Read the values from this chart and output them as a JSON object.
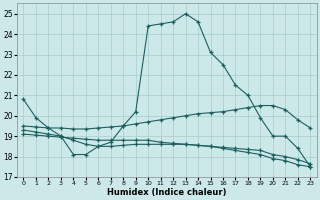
{
  "xlabel": "Humidex (Indice chaleur)",
  "background_color": "#cce8e8",
  "grid_color": "#aacccc",
  "line_color": "#1a6060",
  "xlim": [
    -0.5,
    23.5
  ],
  "ylim": [
    17,
    25.5
  ],
  "yticks": [
    17,
    18,
    19,
    20,
    21,
    22,
    23,
    24,
    25
  ],
  "xticks": [
    0,
    1,
    2,
    3,
    4,
    5,
    6,
    7,
    8,
    9,
    10,
    11,
    12,
    13,
    14,
    15,
    16,
    17,
    18,
    19,
    20,
    21,
    22,
    23
  ],
  "series": [
    {
      "x": [
        0,
        1,
        2,
        3,
        4,
        5,
        6,
        7,
        8,
        9,
        10,
        11,
        12,
        13,
        14,
        15,
        16,
        17,
        18,
        19,
        20,
        21,
        22,
        23
      ],
      "y": [
        20.8,
        19.9,
        19.4,
        19.0,
        18.1,
        18.1,
        18.5,
        18.7,
        19.5,
        20.2,
        24.4,
        24.5,
        24.6,
        25.0,
        24.6,
        23.1,
        22.5,
        21.5,
        21.0,
        19.9,
        19.0,
        19.0,
        18.4,
        17.5
      ]
    },
    {
      "x": [
        0,
        1,
        2,
        3,
        4,
        5,
        6,
        7,
        8,
        9,
        10,
        11,
        12,
        13,
        14,
        15,
        16,
        17,
        18,
        19,
        20,
        21,
        22,
        23
      ],
      "y": [
        19.5,
        19.45,
        19.4,
        19.4,
        19.35,
        19.35,
        19.4,
        19.45,
        19.5,
        19.6,
        19.7,
        19.8,
        19.9,
        20.0,
        20.1,
        20.15,
        20.2,
        20.3,
        20.4,
        20.5,
        20.5,
        20.3,
        19.8,
        19.4
      ]
    },
    {
      "x": [
        0,
        1,
        2,
        3,
        4,
        5,
        6,
        7,
        8,
        9,
        10,
        11,
        12,
        13,
        14,
        15,
        16,
        17,
        18,
        19,
        20,
        21,
        22,
        23
      ],
      "y": [
        19.1,
        19.05,
        19.0,
        18.95,
        18.9,
        18.85,
        18.8,
        18.8,
        18.8,
        18.8,
        18.8,
        18.7,
        18.65,
        18.6,
        18.55,
        18.5,
        18.4,
        18.3,
        18.2,
        18.1,
        17.9,
        17.8,
        17.6,
        17.5
      ]
    },
    {
      "x": [
        0,
        1,
        2,
        3,
        4,
        5,
        6,
        7,
        8,
        9,
        10,
        11,
        12,
        13,
        14,
        15,
        16,
        17,
        18,
        19,
        20,
        21,
        22,
        23
      ],
      "y": [
        19.3,
        19.2,
        19.1,
        19.0,
        18.8,
        18.6,
        18.5,
        18.5,
        18.55,
        18.6,
        18.6,
        18.6,
        18.6,
        18.6,
        18.55,
        18.5,
        18.45,
        18.4,
        18.35,
        18.3,
        18.1,
        18.0,
        17.85,
        17.65
      ]
    }
  ]
}
